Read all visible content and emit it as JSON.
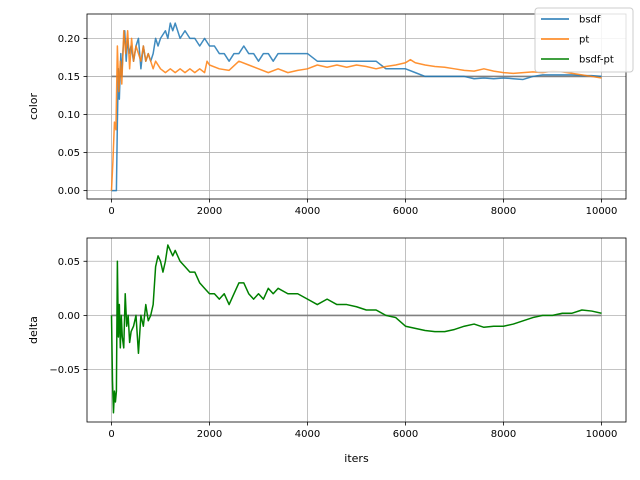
{
  "chart_data": [
    {
      "type": "line",
      "ylabel": "color",
      "xlim": [
        -500,
        10500
      ],
      "ylim": [
        -0.011,
        0.232
      ],
      "x_ticks": [
        0,
        2000,
        4000,
        6000,
        8000,
        10000
      ],
      "x_tick_labels": [
        "0",
        "2000",
        "4000",
        "6000",
        "8000",
        "10000"
      ],
      "y_ticks": [
        0.0,
        0.05,
        0.1,
        0.15,
        0.2
      ],
      "y_tick_labels": [
        "0.00",
        "0.05",
        "0.10",
        "0.15",
        "0.20"
      ],
      "grid": true,
      "legend": {
        "placement": "upper-right",
        "entries": [
          "bsdf",
          "pt",
          "bsdf-pt"
        ]
      },
      "reference_line": {
        "y": 0.15,
        "color": "#808080"
      },
      "series": [
        {
          "name": "bsdf",
          "color": "#1f77b4",
          "x": [
            0,
            60,
            100,
            120,
            140,
            160,
            190,
            210,
            240,
            270,
            300,
            330,
            360,
            400,
            450,
            500,
            550,
            600,
            650,
            700,
            750,
            800,
            850,
            900,
            950,
            1000,
            1100,
            1150,
            1200,
            1250,
            1300,
            1350,
            1400,
            1500,
            1600,
            1700,
            1800,
            1900,
            2000,
            2100,
            2200,
            2300,
            2400,
            2500,
            2600,
            2700,
            2800,
            2900,
            3000,
            3100,
            3200,
            3300,
            3400,
            3600,
            3800,
            4000,
            4200,
            4400,
            4600,
            4800,
            5000,
            5200,
            5400,
            5600,
            5800,
            6000,
            6200,
            6400,
            6600,
            6800,
            7000,
            7200,
            7400,
            7600,
            7800,
            8000,
            8200,
            8400,
            8600,
            8800,
            9000,
            9200,
            9400,
            9600,
            9800,
            10000
          ],
          "y": [
            0.0,
            0.0,
            0.0,
            0.09,
            0.16,
            0.12,
            0.18,
            0.15,
            0.19,
            0.21,
            0.17,
            0.2,
            0.18,
            0.19,
            0.17,
            0.19,
            0.2,
            0.16,
            0.19,
            0.17,
            0.18,
            0.17,
            0.18,
            0.2,
            0.19,
            0.2,
            0.21,
            0.2,
            0.22,
            0.21,
            0.22,
            0.21,
            0.2,
            0.21,
            0.2,
            0.2,
            0.19,
            0.2,
            0.19,
            0.19,
            0.18,
            0.18,
            0.17,
            0.18,
            0.18,
            0.19,
            0.18,
            0.18,
            0.17,
            0.18,
            0.18,
            0.17,
            0.18,
            0.18,
            0.18,
            0.18,
            0.17,
            0.17,
            0.17,
            0.17,
            0.17,
            0.17,
            0.17,
            0.16,
            0.16,
            0.16,
            0.155,
            0.15,
            0.15,
            0.15,
            0.15,
            0.15,
            0.147,
            0.148,
            0.147,
            0.148,
            0.147,
            0.146,
            0.15,
            0.152,
            0.152,
            0.152,
            0.152,
            0.151,
            0.151,
            0.15
          ]
        },
        {
          "name": "pt",
          "color": "#ff7f0e",
          "x": [
            0,
            30,
            60,
            90,
            120,
            150,
            180,
            210,
            250,
            290,
            330,
            370,
            410,
            450,
            500,
            550,
            600,
            650,
            700,
            750,
            800,
            850,
            900,
            1000,
            1100,
            1200,
            1300,
            1400,
            1500,
            1600,
            1700,
            1800,
            1900,
            1950,
            2000,
            2200,
            2400,
            2600,
            2800,
            3000,
            3200,
            3400,
            3600,
            3800,
            4000,
            4200,
            4400,
            4600,
            4800,
            5000,
            5200,
            5400,
            5600,
            5800,
            6000,
            6100,
            6200,
            6400,
            6600,
            6800,
            7000,
            7200,
            7400,
            7600,
            7800,
            8000,
            8200,
            8400,
            8600,
            8800,
            9000,
            9200,
            9400,
            9600,
            9800,
            10000
          ],
          "y": [
            0.0,
            0.04,
            0.09,
            0.08,
            0.19,
            0.13,
            0.17,
            0.14,
            0.21,
            0.18,
            0.21,
            0.16,
            0.2,
            0.17,
            0.19,
            0.18,
            0.17,
            0.19,
            0.17,
            0.18,
            0.17,
            0.16,
            0.17,
            0.16,
            0.155,
            0.16,
            0.155,
            0.16,
            0.155,
            0.16,
            0.155,
            0.16,
            0.155,
            0.17,
            0.165,
            0.16,
            0.158,
            0.17,
            0.165,
            0.16,
            0.155,
            0.16,
            0.155,
            0.158,
            0.16,
            0.165,
            0.162,
            0.165,
            0.162,
            0.165,
            0.163,
            0.16,
            0.163,
            0.165,
            0.168,
            0.172,
            0.168,
            0.165,
            0.163,
            0.162,
            0.16,
            0.158,
            0.157,
            0.16,
            0.157,
            0.155,
            0.154,
            0.155,
            0.156,
            0.155,
            0.157,
            0.156,
            0.154,
            0.152,
            0.15,
            0.148
          ]
        }
      ]
    },
    {
      "type": "line",
      "ylabel": "delta",
      "xlabel": "iters",
      "xlim": [
        -500,
        10500
      ],
      "ylim": [
        -0.0985,
        0.0715
      ],
      "x_ticks": [
        0,
        2000,
        4000,
        6000,
        8000,
        10000
      ],
      "x_tick_labels": [
        "0",
        "2000",
        "4000",
        "6000",
        "8000",
        "10000"
      ],
      "y_ticks": [
        -0.05,
        0.0,
        0.05
      ],
      "y_tick_labels": [
        "−0.05",
        "0.00",
        "0.05"
      ],
      "grid": true,
      "reference_line": {
        "y": 0.0,
        "color": "#808080"
      },
      "series": [
        {
          "name": "bsdf-pt",
          "color": "#008000",
          "x": [
            0,
            20,
            40,
            60,
            80,
            100,
            120,
            140,
            160,
            180,
            200,
            220,
            250,
            280,
            310,
            340,
            370,
            400,
            450,
            500,
            550,
            600,
            650,
            700,
            750,
            800,
            850,
            900,
            950,
            1000,
            1050,
            1100,
            1150,
            1200,
            1250,
            1300,
            1400,
            1500,
            1600,
            1700,
            1800,
            1900,
            2000,
            2100,
            2200,
            2300,
            2400,
            2500,
            2600,
            2700,
            2800,
            2900,
            3000,
            3100,
            3200,
            3300,
            3400,
            3600,
            3800,
            4000,
            4200,
            4400,
            4600,
            4800,
            5000,
            5200,
            5400,
            5600,
            5800,
            6000,
            6200,
            6400,
            6600,
            6800,
            7000,
            7200,
            7400,
            7600,
            7800,
            8000,
            8200,
            8400,
            8600,
            8800,
            9000,
            9200,
            9400,
            9600,
            9800,
            10000
          ],
          "y": [
            0.0,
            -0.06,
            -0.09,
            -0.07,
            -0.08,
            -0.07,
            0.05,
            -0.02,
            0.01,
            -0.03,
            0.0,
            -0.02,
            -0.03,
            0.02,
            -0.01,
            0.0,
            -0.025,
            -0.015,
            -0.01,
            0.0,
            -0.035,
            0.0,
            -0.01,
            0.01,
            -0.005,
            0.0,
            0.01,
            0.045,
            0.055,
            0.05,
            0.04,
            0.05,
            0.065,
            0.06,
            0.055,
            0.06,
            0.05,
            0.045,
            0.04,
            0.04,
            0.03,
            0.025,
            0.02,
            0.02,
            0.015,
            0.02,
            0.01,
            0.02,
            0.03,
            0.03,
            0.02,
            0.015,
            0.02,
            0.015,
            0.025,
            0.02,
            0.025,
            0.02,
            0.02,
            0.015,
            0.01,
            0.015,
            0.01,
            0.01,
            0.008,
            0.005,
            0.005,
            0.0,
            -0.002,
            -0.01,
            -0.012,
            -0.014,
            -0.015,
            -0.015,
            -0.013,
            -0.01,
            -0.008,
            -0.011,
            -0.01,
            -0.01,
            -0.008,
            -0.005,
            -0.002,
            0.0,
            0.0,
            0.002,
            0.002,
            0.005,
            0.004,
            0.002
          ]
        }
      ]
    }
  ]
}
